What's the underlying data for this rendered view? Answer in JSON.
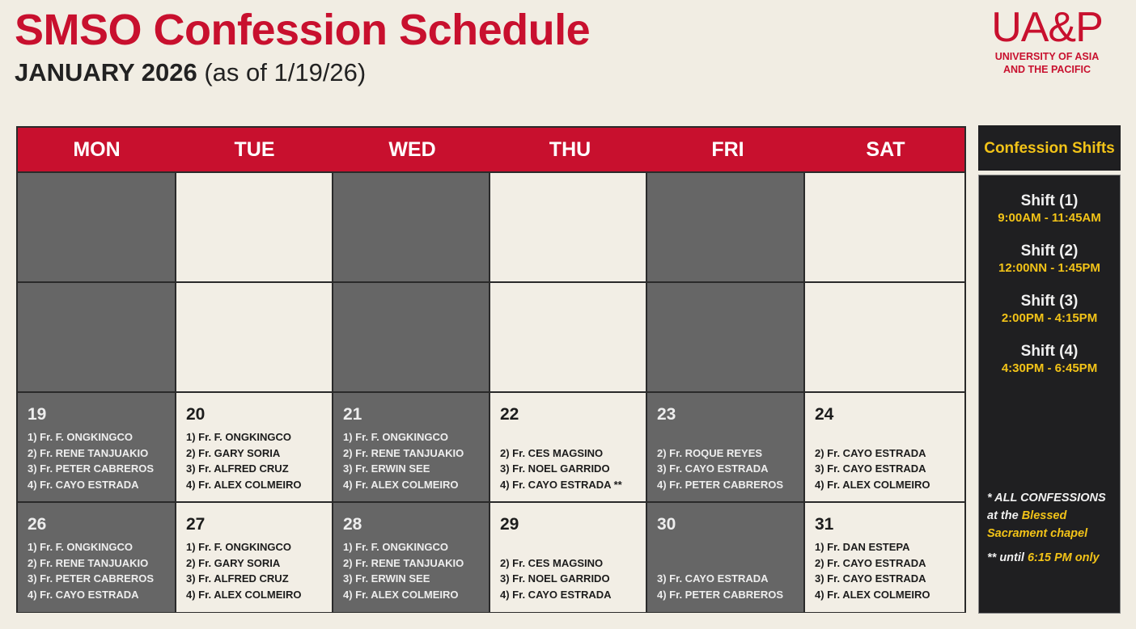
{
  "header": {
    "title": "SMSO Confession Schedule",
    "subtitle_month": "JANUARY 2026",
    "subtitle_note": "(as of 1/19/26)"
  },
  "logo": {
    "mark": "UA&P",
    "line1": "UNIVERSITY OF ASIA",
    "line2": "AND THE PACIFIC"
  },
  "colors": {
    "brand_red": "#c8102e",
    "dark_cell": "#666666",
    "light_cell": "#f2eee5",
    "panel": "#1f1f21",
    "accent_yellow": "#f2c318"
  },
  "calendar": {
    "weekdays": [
      "MON",
      "TUE",
      "WED",
      "THU",
      "FRI",
      "SAT"
    ],
    "weeks": [
      [
        {
          "day": "",
          "shifts": [
            "",
            "",
            "",
            ""
          ]
        },
        {
          "day": "",
          "shifts": [
            "",
            "",
            "",
            ""
          ]
        },
        {
          "day": "",
          "shifts": [
            "",
            "",
            "",
            ""
          ]
        },
        {
          "day": "",
          "shifts": [
            "",
            "",
            "",
            ""
          ]
        },
        {
          "day": "",
          "shifts": [
            "",
            "",
            "",
            ""
          ]
        },
        {
          "day": "",
          "shifts": [
            "",
            "",
            "",
            ""
          ]
        }
      ],
      [
        {
          "day": "",
          "shifts": [
            "",
            "",
            "",
            ""
          ]
        },
        {
          "day": "",
          "shifts": [
            "",
            "",
            "",
            ""
          ]
        },
        {
          "day": "",
          "shifts": [
            "",
            "",
            "",
            ""
          ]
        },
        {
          "day": "",
          "shifts": [
            "",
            "",
            "",
            ""
          ]
        },
        {
          "day": "",
          "shifts": [
            "",
            "",
            "",
            ""
          ]
        },
        {
          "day": "",
          "shifts": [
            "",
            "",
            "",
            ""
          ]
        }
      ],
      [
        {
          "day": "19",
          "shifts": [
            "1) Fr. F. ONGKINGCO",
            "2) Fr. RENE TANJUAKIO",
            "3) Fr. PETER CABREROS",
            "4) Fr. CAYO ESTRADA"
          ]
        },
        {
          "day": "20",
          "shifts": [
            "1) Fr. F. ONGKINGCO",
            "2) Fr. GARY SORIA",
            "3) Fr. ALFRED CRUZ",
            "4) Fr. ALEX COLMEIRO"
          ]
        },
        {
          "day": "21",
          "shifts": [
            "1) Fr. F. ONGKINGCO",
            "2) Fr. RENE TANJUAKIO",
            "3) Fr. ERWIN SEE",
            "4) Fr. ALEX COLMEIRO"
          ]
        },
        {
          "day": "22",
          "shifts": [
            "",
            "2) Fr. CES MAGSINO",
            "3) Fr. NOEL GARRIDO",
            "4) Fr. CAYO ESTRADA **"
          ]
        },
        {
          "day": "23",
          "shifts": [
            "",
            "2) Fr. ROQUE REYES",
            "3) Fr. CAYO ESTRADA",
            "4) Fr. PETER CABREROS"
          ]
        },
        {
          "day": "24",
          "shifts": [
            "",
            "2) Fr. CAYO ESTRADA",
            "3) Fr. CAYO ESTRADA",
            "4) Fr. ALEX COLMEIRO"
          ]
        }
      ],
      [
        {
          "day": "26",
          "shifts": [
            "1) Fr. F. ONGKINGCO",
            "2) Fr. RENE TANJUAKIO",
            "3) Fr. PETER CABREROS",
            "4) Fr. CAYO ESTRADA"
          ]
        },
        {
          "day": "27",
          "shifts": [
            "1) Fr. F. ONGKINGCO",
            "2) Fr. GARY SORIA",
            "3) Fr. ALFRED CRUZ",
            "4) Fr. ALEX COLMEIRO"
          ]
        },
        {
          "day": "28",
          "shifts": [
            "1) Fr. F. ONGKINGCO",
            "2) Fr. RENE TANJUAKIO",
            "3) Fr. ERWIN SEE",
            "4) Fr. ALEX COLMEIRO"
          ]
        },
        {
          "day": "29",
          "shifts": [
            "",
            "2) Fr. CES MAGSINO",
            "3) Fr. NOEL GARRIDO",
            "4) Fr. CAYO ESTRADA"
          ]
        },
        {
          "day": "30",
          "shifts": [
            "",
            "",
            "3) Fr. CAYO ESTRADA",
            "4) Fr. PETER CABREROS"
          ]
        },
        {
          "day": "31",
          "shifts": [
            "1) Fr. DAN ESTEPA",
            "2) Fr. CAYO ESTRADA",
            "3) Fr. CAYO ESTRADA",
            "4) Fr. ALEX COLMEIRO"
          ]
        }
      ]
    ]
  },
  "side_panel": {
    "title": "Confession Shifts",
    "shifts": [
      {
        "name": "Shift (1)",
        "time": "9:00AM - 11:45AM"
      },
      {
        "name": "Shift (2)",
        "time": "12:00NN - 1:45PM"
      },
      {
        "name": "Shift (3)",
        "time": "2:00PM - 4:15PM"
      },
      {
        "name": "Shift (4)",
        "time": "4:30PM - 6:45PM"
      }
    ],
    "note1_prefix": "* ALL CONFESSIONS at the",
    "note1_highlight": "Blessed Sacrament chapel",
    "note2_prefix": "** until",
    "note2_highlight": "6:15 PM only"
  }
}
